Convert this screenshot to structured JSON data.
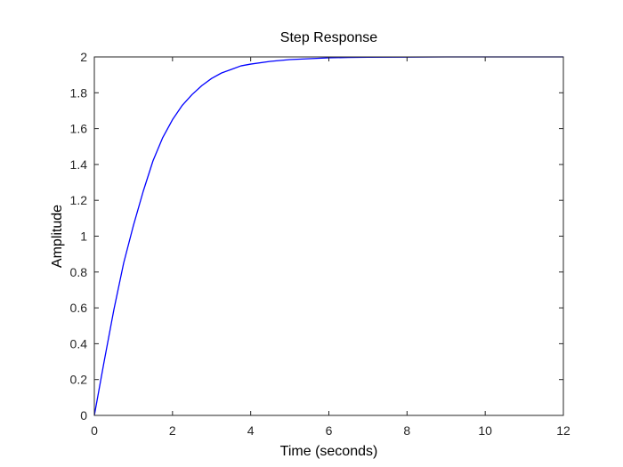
{
  "chart_data": {
    "type": "line",
    "title": "Step Response",
    "xlabel": "Time (seconds)",
    "ylabel": "Amplitude",
    "xlim": [
      0,
      12
    ],
    "ylim": [
      0,
      2
    ],
    "xticks": [
      "0",
      "2",
      "4",
      "6",
      "8",
      "10",
      "12"
    ],
    "yticks": [
      "0",
      "0.2",
      "0.4",
      "0.6",
      "0.8",
      "1",
      "1.2",
      "1.4",
      "1.6",
      "1.8",
      "2"
    ],
    "grid": false,
    "series": [
      {
        "color": "#0000ff",
        "x": [
          0,
          0.25,
          0.5,
          0.75,
          1,
          1.25,
          1.5,
          1.75,
          2,
          2.25,
          2.5,
          2.75,
          3,
          3.25,
          3.5,
          3.75,
          4,
          4.5,
          5,
          5.5,
          6,
          6.5,
          7,
          8,
          9,
          10,
          11,
          12
        ],
        "y": [
          0,
          0.3,
          0.59,
          0.85,
          1.06,
          1.25,
          1.42,
          1.55,
          1.65,
          1.73,
          1.79,
          1.84,
          1.88,
          1.91,
          1.93,
          1.95,
          1.96,
          1.975,
          1.985,
          1.99,
          1.995,
          1.997,
          1.998,
          1.999,
          2.0,
          2.0,
          2.0,
          2.0
        ]
      }
    ],
    "steady_state": {
      "value": 2,
      "color": "#000000",
      "style": "dotted"
    }
  }
}
